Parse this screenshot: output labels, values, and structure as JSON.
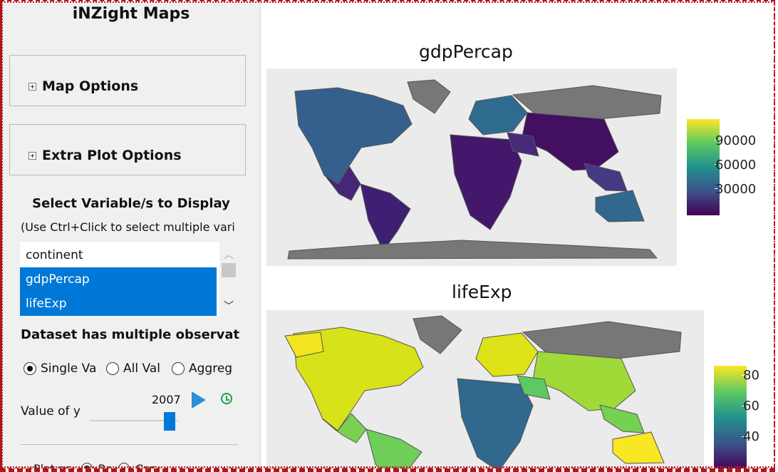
{
  "app": {
    "title": "iNZight Maps"
  },
  "sections": [
    {
      "label": "Map Options"
    },
    {
      "label": "Extra Plot Options"
    }
  ],
  "variables": {
    "heading": "Select Variable/s to Display",
    "hint": "(Use Ctrl+Click to select multiple vari",
    "items": [
      {
        "label": "continent",
        "selected": false
      },
      {
        "label": "gdpPercap",
        "selected": true
      },
      {
        "label": "lifeExp",
        "selected": true
      }
    ]
  },
  "multi_obs": {
    "note": "Dataset has multiple observat",
    "options": [
      {
        "label": "Single Va",
        "checked": true
      },
      {
        "label": "All Val",
        "checked": false
      },
      {
        "label": "Aggreg",
        "checked": false
      }
    ]
  },
  "time": {
    "year": "2007",
    "value_label": "Value of y",
    "slider_fraction": 1.0
  },
  "plot_as": {
    "label": "Plot as:",
    "options": [
      {
        "label": "Re",
        "checked": true
      },
      {
        "label": "Cor",
        "checked": false
      }
    ]
  },
  "plots": [
    {
      "title": "gdpPercap",
      "legend_ticks": [
        "90000",
        "60000",
        "30000"
      ],
      "palette": "viridis",
      "ocean_bg": "#ebebeb",
      "no_data": "#7a7a7a"
    },
    {
      "title": "lifeExp",
      "legend_ticks": [
        "80",
        "60",
        "40"
      ],
      "palette": "viridis",
      "ocean_bg": "#ebebeb",
      "no_data": "#7a7a7a"
    }
  ],
  "colors": {
    "accent": "#0078d7",
    "play": "#2a8fd6",
    "timer": "#17a44a",
    "frame": "#b0161d"
  },
  "icons": {
    "expand": "plus-box-icon",
    "play": "play-icon",
    "timer": "timer-icon"
  }
}
